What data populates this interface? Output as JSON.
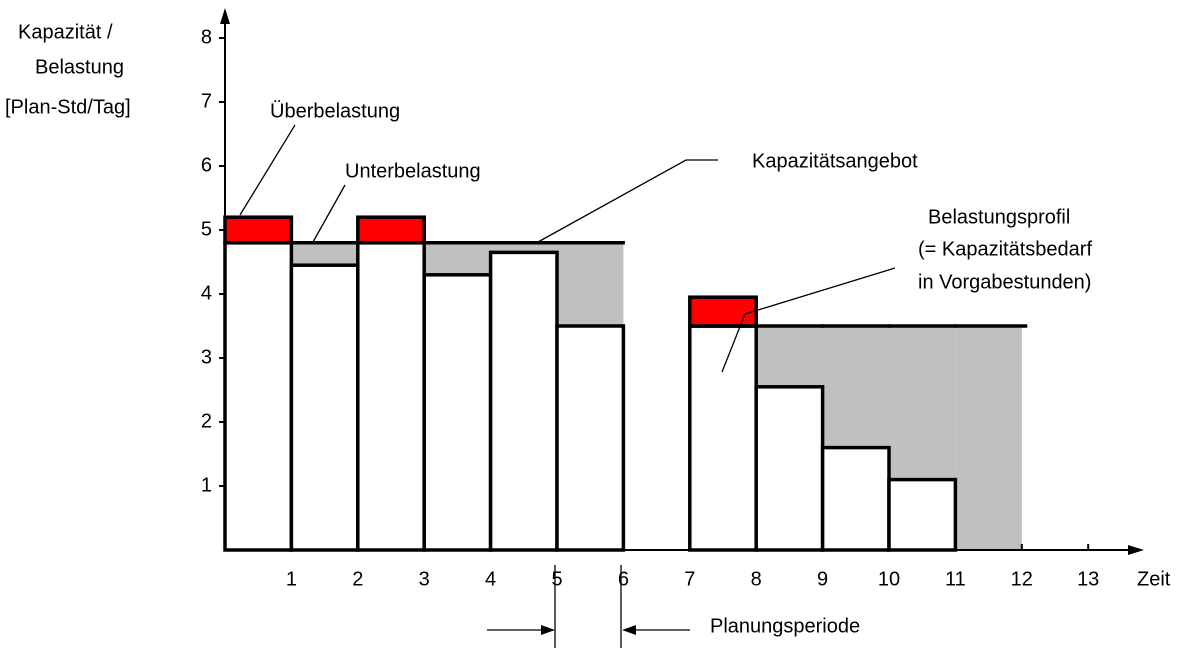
{
  "chart_data": {
    "type": "bar",
    "y_label": [
      "Kapazität /",
      "Belastung",
      "[Plan-Std/Tag]"
    ],
    "x_label": "Zeit",
    "annotations": [
      "Überbelastung",
      "Unterbelastung",
      "Kapazitätsangebot",
      "Belastungsprofil",
      "(= Kapazitätsbedarf",
      "in Vorgabestunden)",
      "Planungsperiode"
    ],
    "load": [
      5.2,
      4.45,
      5.2,
      4.3,
      4.65,
      3.5,
      0,
      3.95,
      2.55,
      1.6,
      1.1,
      0
    ],
    "capacity": [
      4.8,
      4.8,
      4.8,
      4.8,
      4.8,
      4.8,
      null,
      3.5,
      3.5,
      3.5,
      3.5,
      3.5
    ],
    "overload_color": "#ff0000",
    "underload_color": "#c0c0c0",
    "xlim": [
      0,
      13.8
    ],
    "ylim": [
      0,
      8.4
    ],
    "xticks": [
      1,
      2,
      3,
      4,
      5,
      6,
      7,
      8,
      9,
      10,
      11,
      12,
      13
    ],
    "yticks": [
      1,
      2,
      3,
      4,
      5,
      6,
      7,
      8
    ]
  }
}
